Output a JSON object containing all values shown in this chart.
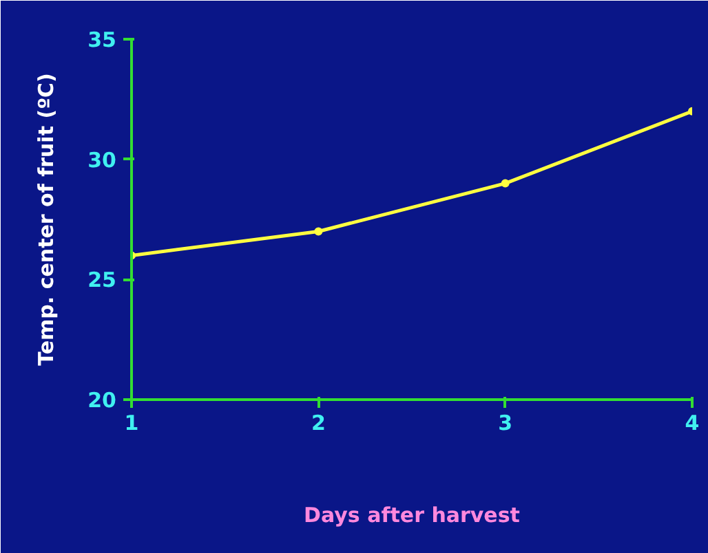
{
  "chart_data": {
    "type": "line",
    "xlabel": "Days after harvest",
    "ylabel": "Temp. center of fruit (ºC)",
    "x": [
      1,
      2,
      3,
      4
    ],
    "series": [
      {
        "color": "#ffff40",
        "values": [
          26,
          27,
          29,
          32
        ]
      }
    ],
    "xlim": [
      1,
      4
    ],
    "ylim": [
      20,
      35
    ],
    "xticks": [
      1,
      2,
      3,
      4
    ],
    "yticks": [
      20,
      25,
      30,
      35
    ],
    "grid": false,
    "marker": "circle",
    "line_style": "solid"
  }
}
